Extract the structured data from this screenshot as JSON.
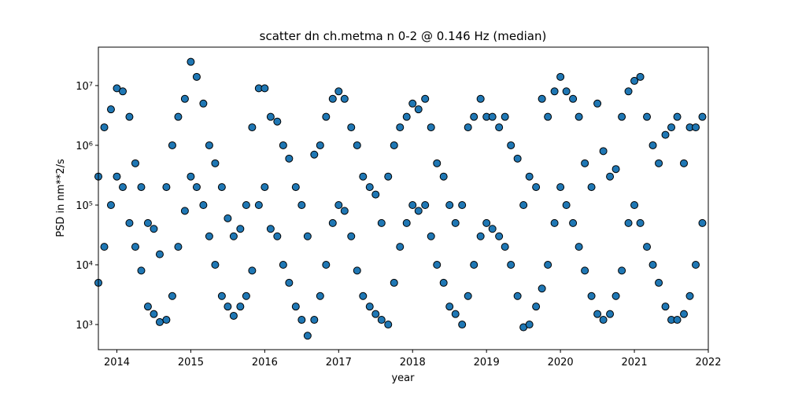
{
  "chart_data": {
    "type": "scatter",
    "title": "scatter dn ch.metma n 0-2 @ 0.146 Hz (median)",
    "xlabel": "year",
    "ylabel": "PSD in nm**2/s",
    "color": "#1f77b4",
    "edgecolor": "#000000",
    "yscale": "log",
    "xlim": [
      2013.75,
      2022
    ],
    "ylim": [
      380,
      44000000
    ],
    "xticks": [
      2014,
      2015,
      2016,
      2017,
      2018,
      2019,
      2020,
      2021,
      2022
    ],
    "yticks": [
      {
        "value": 1000,
        "label": "10³"
      },
      {
        "value": 10000,
        "label": "10⁴"
      },
      {
        "value": 100000,
        "label": "10⁵"
      },
      {
        "value": 1000000,
        "label": "10⁶"
      },
      {
        "value": 10000000,
        "label": "10⁷"
      }
    ],
    "x": [
      2013.75,
      2013.75,
      2013.83,
      2013.83,
      2013.92,
      2013.92,
      2014.0,
      2014.0,
      2014.08,
      2014.08,
      2014.17,
      2014.17,
      2014.25,
      2014.25,
      2014.33,
      2014.33,
      2014.42,
      2014.42,
      2014.5,
      2014.5,
      2014.58,
      2014.58,
      2014.67,
      2014.67,
      2014.75,
      2014.75,
      2014.83,
      2014.83,
      2014.92,
      2014.92,
      2015.0,
      2015.0,
      2015.08,
      2015.08,
      2015.17,
      2015.17,
      2015.25,
      2015.25,
      2015.33,
      2015.33,
      2015.42,
      2015.42,
      2015.5,
      2015.5,
      2015.58,
      2015.58,
      2015.67,
      2015.67,
      2015.75,
      2015.75,
      2015.83,
      2015.83,
      2015.92,
      2015.92,
      2016.0,
      2016.0,
      2016.08,
      2016.08,
      2016.17,
      2016.17,
      2016.25,
      2016.25,
      2016.33,
      2016.33,
      2016.42,
      2016.42,
      2016.5,
      2016.5,
      2016.58,
      2016.58,
      2016.67,
      2016.67,
      2016.75,
      2016.75,
      2016.83,
      2016.83,
      2016.92,
      2016.92,
      2017.0,
      2017.0,
      2017.08,
      2017.08,
      2017.17,
      2017.17,
      2017.25,
      2017.25,
      2017.33,
      2017.33,
      2017.42,
      2017.42,
      2017.5,
      2017.5,
      2017.58,
      2017.58,
      2017.67,
      2017.67,
      2017.75,
      2017.75,
      2017.83,
      2017.83,
      2017.92,
      2017.92,
      2018.0,
      2018.0,
      2018.08,
      2018.08,
      2018.17,
      2018.17,
      2018.25,
      2018.25,
      2018.33,
      2018.33,
      2018.42,
      2018.42,
      2018.5,
      2018.5,
      2018.58,
      2018.58,
      2018.67,
      2018.67,
      2018.75,
      2018.75,
      2018.83,
      2018.83,
      2018.92,
      2018.92,
      2019.0,
      2019.0,
      2019.08,
      2019.08,
      2019.17,
      2019.17,
      2019.25,
      2019.25,
      2019.33,
      2019.33,
      2019.42,
      2019.42,
      2019.5,
      2019.5,
      2019.58,
      2019.58,
      2019.67,
      2019.67,
      2019.75,
      2019.75,
      2019.83,
      2019.83,
      2019.92,
      2019.92,
      2020.0,
      2020.0,
      2020.08,
      2020.08,
      2020.17,
      2020.17,
      2020.25,
      2020.25,
      2020.33,
      2020.33,
      2020.42,
      2020.42,
      2020.5,
      2020.5,
      2020.58,
      2020.58,
      2020.67,
      2020.67,
      2020.75,
      2020.75,
      2020.83,
      2020.83,
      2020.92,
      2020.92,
      2021.0,
      2021.0,
      2021.08,
      2021.08,
      2021.17,
      2021.17,
      2021.25,
      2021.25,
      2021.33,
      2021.33,
      2021.42,
      2021.42,
      2021.5,
      2021.5,
      2021.58,
      2021.58,
      2021.67,
      2021.67,
      2021.75,
      2021.75,
      2021.83,
      2021.83,
      2021.92,
      2021.92
    ],
    "values": [
      300000.0,
      5000.0,
      2000000.0,
      20000.0,
      4000000.0,
      100000.0,
      9000000.0,
      300000.0,
      8000000.0,
      200000.0,
      3000000.0,
      50000.0,
      500000.0,
      20000.0,
      200000.0,
      8000.0,
      50000.0,
      2000.0,
      40000.0,
      1500.0,
      15000.0,
      1100.0,
      200000.0,
      1200.0,
      1000000.0,
      3000.0,
      3000000.0,
      20000.0,
      6000000.0,
      80000.0,
      25000000.0,
      300000.0,
      14000000.0,
      200000.0,
      5000000.0,
      100000.0,
      1000000.0,
      30000.0,
      500000.0,
      10000.0,
      200000.0,
      3000.0,
      60000.0,
      2000.0,
      30000.0,
      1400.0,
      40000.0,
      2000.0,
      100000.0,
      3000.0,
      2000000.0,
      8000.0,
      9000000.0,
      100000.0,
      9000000.0,
      200000.0,
      3000000.0,
      40000.0,
      2500000.0,
      30000.0,
      1000000.0,
      10000.0,
      600000.0,
      5000.0,
      200000.0,
      2000.0,
      100000.0,
      1200.0,
      30000.0,
      650,
      700000.0,
      1200.0,
      1000000.0,
      3000.0,
      3000000.0,
      10000.0,
      6000000.0,
      50000.0,
      8000000.0,
      100000.0,
      6000000.0,
      80000.0,
      2000000.0,
      30000.0,
      1000000.0,
      8000.0,
      300000.0,
      3000.0,
      200000.0,
      2000.0,
      150000.0,
      1500.0,
      50000.0,
      1200.0,
      300000.0,
      1000.0,
      1000000.0,
      5000.0,
      2000000.0,
      20000.0,
      3000000.0,
      50000.0,
      5000000.0,
      100000.0,
      4000000.0,
      80000.0,
      6000000.0,
      100000.0,
      2000000.0,
      30000.0,
      500000.0,
      10000.0,
      300000.0,
      5000.0,
      100000.0,
      2000.0,
      50000.0,
      1500.0,
      100000.0,
      1000.0,
      2000000.0,
      3000.0,
      3000000.0,
      10000.0,
      6000000.0,
      30000.0,
      3000000.0,
      50000.0,
      3000000.0,
      40000.0,
      2000000.0,
      30000.0,
      3000000.0,
      20000.0,
      1000000.0,
      10000.0,
      600000.0,
      3000.0,
      100000.0,
      900,
      300000.0,
      1000.0,
      200000.0,
      2000.0,
      6000000.0,
      4000.0,
      3000000.0,
      10000.0,
      8000000.0,
      50000.0,
      14000000.0,
      200000.0,
      8000000.0,
      100000.0,
      6000000.0,
      50000.0,
      3000000.0,
      20000.0,
      500000.0,
      8000.0,
      200000.0,
      3000.0,
      5000000.0,
      1500.0,
      800000.0,
      1200.0,
      300000.0,
      1500.0,
      400000.0,
      3000.0,
      3000000.0,
      8000.0,
      8000000.0,
      50000.0,
      12000000.0,
      100000.0,
      14000000.0,
      50000.0,
      3000000.0,
      20000.0,
      1000000.0,
      10000.0,
      500000.0,
      5000.0,
      1500000.0,
      2000.0,
      2000000.0,
      1200.0,
      3000000.0,
      1200.0,
      500000.0,
      1500.0,
      2000000.0,
      3000.0,
      2000000.0,
      10000.0,
      3000000.0,
      50000.0
    ]
  }
}
